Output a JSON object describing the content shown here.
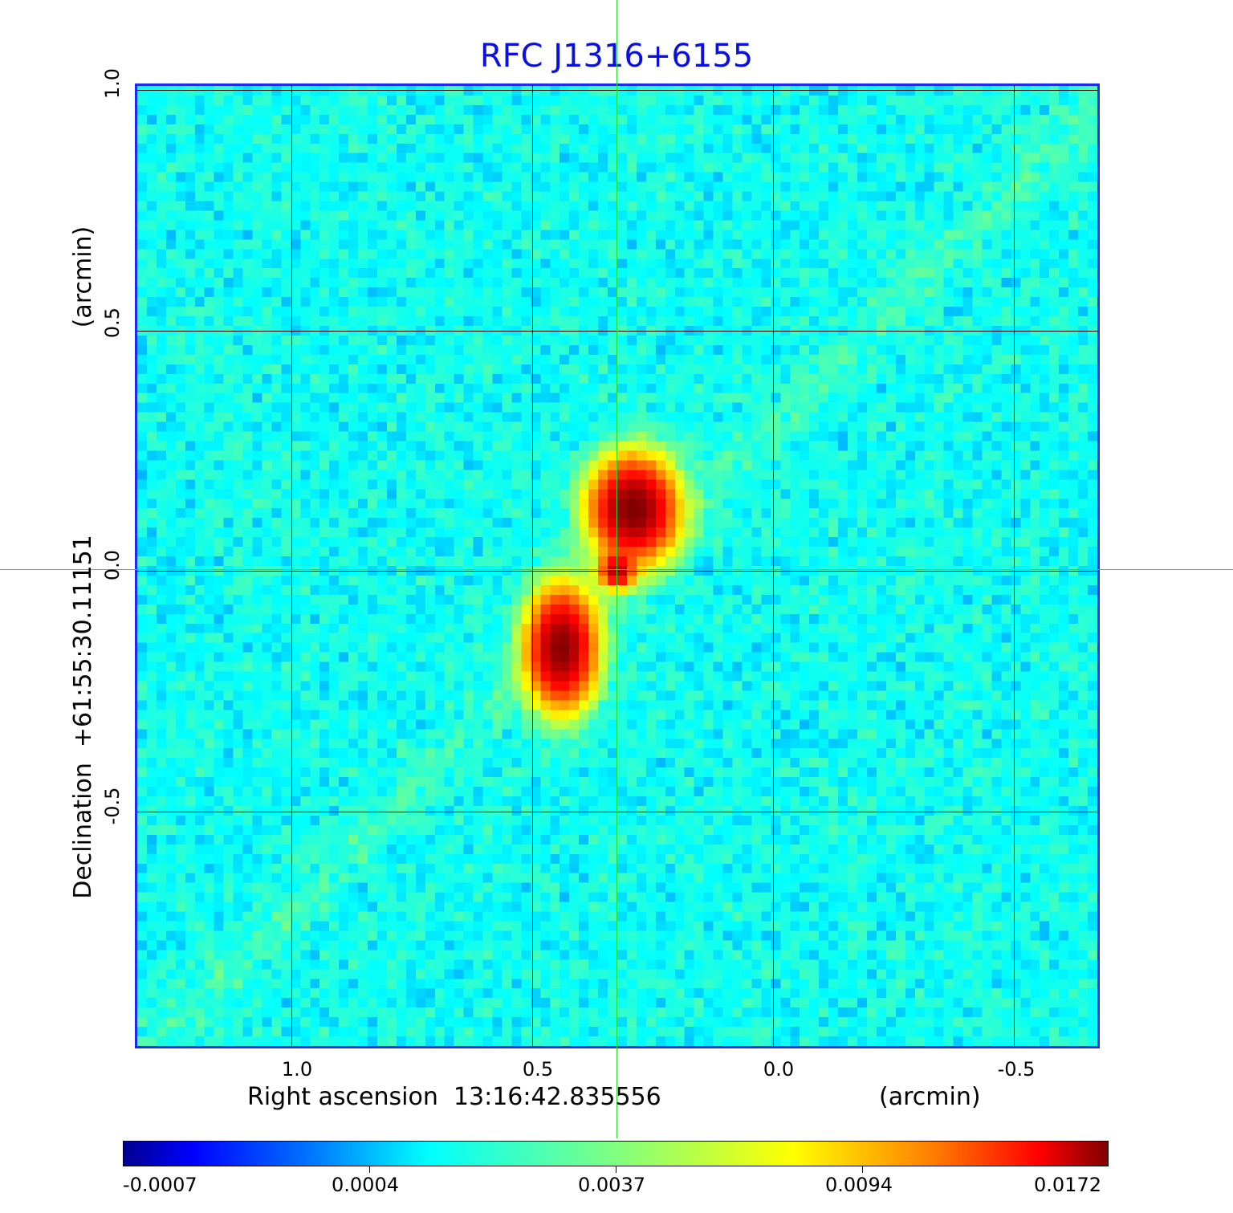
{
  "chart_data": {
    "type": "heatmap",
    "title": "RFC J1316+6155",
    "xlabel": "Right ascension  13:16:42.835556",
    "xunit": "(arcmin)",
    "ylabel": "Declination  +61:55:30.11151",
    "yunit": "(arcmin)",
    "x_ticks": [
      "1.0",
      "0.5",
      "0.0",
      "-0.5"
    ],
    "x_tick_values": [
      1.0,
      0.5,
      0.0,
      -0.5
    ],
    "y_ticks": [
      "1.0",
      "0.5",
      "0.0",
      "-0.5"
    ],
    "y_tick_values": [
      1.0,
      0.5,
      0.0,
      -0.5
    ],
    "xlim": [
      1.325,
      -0.678
    ],
    "ylim": [
      -0.99,
      1.013
    ],
    "grid": true,
    "colormap": "jet",
    "colorbar_ticks": [
      "-0.0007",
      "0.0004",
      "0.0037",
      "0.0094",
      "0.0172"
    ],
    "value_range": [
      -0.0007,
      0.0172
    ],
    "crosshair": {
      "x": 0.325,
      "y": 0.0
    },
    "components": [
      {
        "x": 0.29,
        "y": 0.13,
        "peak": 0.0172,
        "sx": 0.05,
        "sy": 0.06
      },
      {
        "x": 0.44,
        "y": -0.16,
        "peak": 0.016,
        "sx": 0.04,
        "sy": 0.07
      },
      {
        "x": 0.325,
        "y": 0.0,
        "peak": 0.012,
        "sx": 0.02,
        "sy": 0.02
      }
    ],
    "noise_level": 0.0004
  }
}
